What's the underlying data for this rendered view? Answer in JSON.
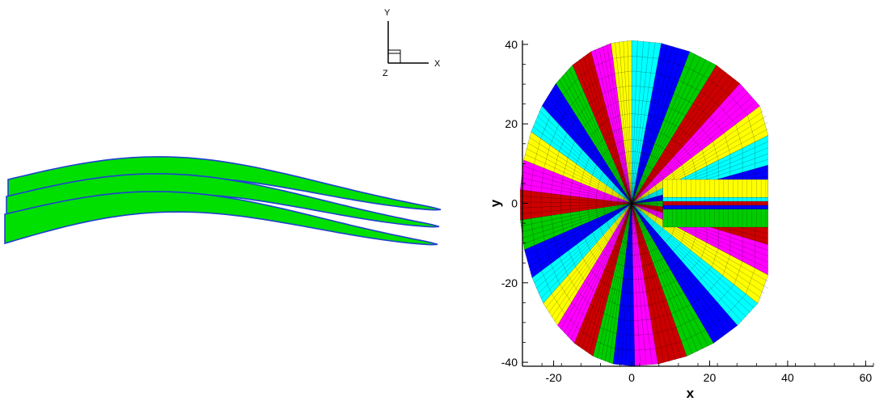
{
  "triad": {
    "y_label": "Y",
    "x_label": "X",
    "z_label": "Z"
  },
  "airfoil_view": {
    "layers": 3,
    "fill_color": "#00e000",
    "edge_color": "#2040d0"
  },
  "mesh_view": {
    "block_colors": [
      "#ff00ff",
      "#cc0000",
      "#00cc00",
      "#0000ff",
      "#00ffff",
      "#ffff00"
    ],
    "line_color": "#000000"
  },
  "chart_data": {
    "type": "mesh",
    "xlabel": "x",
    "ylabel": "y",
    "xlim": [
      -28,
      62
    ],
    "ylim": [
      -41,
      41
    ],
    "xticks": [
      -20,
      0,
      20,
      40,
      60
    ],
    "yticks": [
      -40,
      -20,
      0,
      20,
      40
    ],
    "domain_radius": 28.5,
    "domain_x_max": 35
  }
}
